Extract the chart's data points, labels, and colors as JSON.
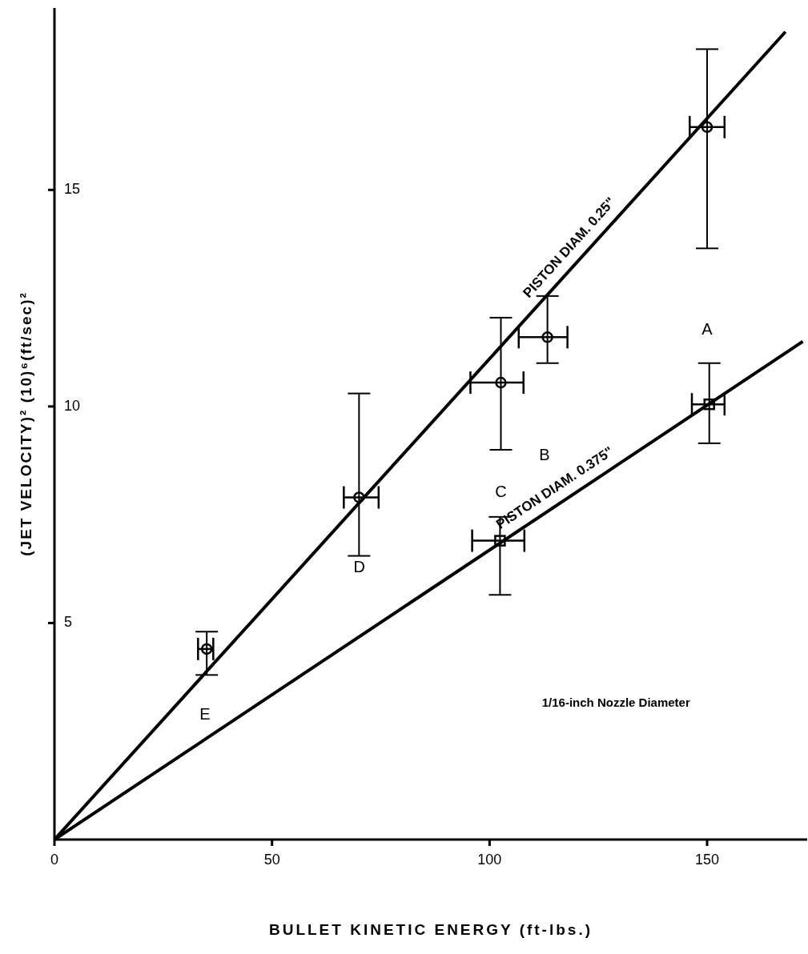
{
  "chart_data": {
    "type": "scatter",
    "xlabel": "BULLET KINETIC ENERGY (ft-lbs.)",
    "ylabel": "(JET VELOCITY)²   (10)⁶(ft/sec)²",
    "xlim": [
      0,
      173
    ],
    "ylim": [
      0,
      19.2
    ],
    "xticks": [
      0,
      50,
      100,
      150
    ],
    "yticks": [
      5,
      10,
      15
    ],
    "series": [
      {
        "marker": "circle",
        "color": "#000000",
        "x": [
          35,
          70,
          102.6,
          113.3,
          150
        ],
        "values": [
          4.4,
          7.9,
          10.55,
          11.6,
          16.45
        ],
        "errors": [
          [
            3.8,
            4.8
          ],
          [
            6.55,
            10.3
          ],
          [
            9.0,
            12.05
          ],
          [
            11.0,
            12.55
          ],
          [
            13.65,
            18.25
          ]
        ],
        "xerrors": [
          [
            33,
            36.5
          ],
          [
            66.5,
            74.5
          ],
          [
            95.6,
            107.8
          ],
          [
            106.7,
            117.9
          ],
          [
            146,
            154
          ]
        ]
      },
      {
        "marker": "square",
        "color": "#000000",
        "x": [
          102.4,
          150.5
        ],
        "values": [
          6.9,
          10.05
        ],
        "errors": [
          [
            5.65,
            7.45
          ],
          [
            9.15,
            11.0
          ]
        ],
        "xerrors": [
          [
            96,
            108
          ],
          [
            146.5,
            154
          ]
        ]
      },
      {
        "type": "line",
        "name": "PISTON DIAM. 0.25\"",
        "color": "#000000",
        "marker": "none",
        "line_style": "solid",
        "x": [
          0,
          168
        ],
        "values": [
          0,
          18.65
        ]
      },
      {
        "type": "line",
        "name": "PISTON DIAM. 0.375\"",
        "color": "#000000",
        "marker": "none",
        "line_style": "solid",
        "x": [
          0,
          172
        ],
        "values": [
          0,
          11.5
        ]
      }
    ],
    "annotations": [
      "A",
      "B",
      "C",
      "D",
      "E",
      "1/16-inch Nozzle Diameter"
    ]
  }
}
